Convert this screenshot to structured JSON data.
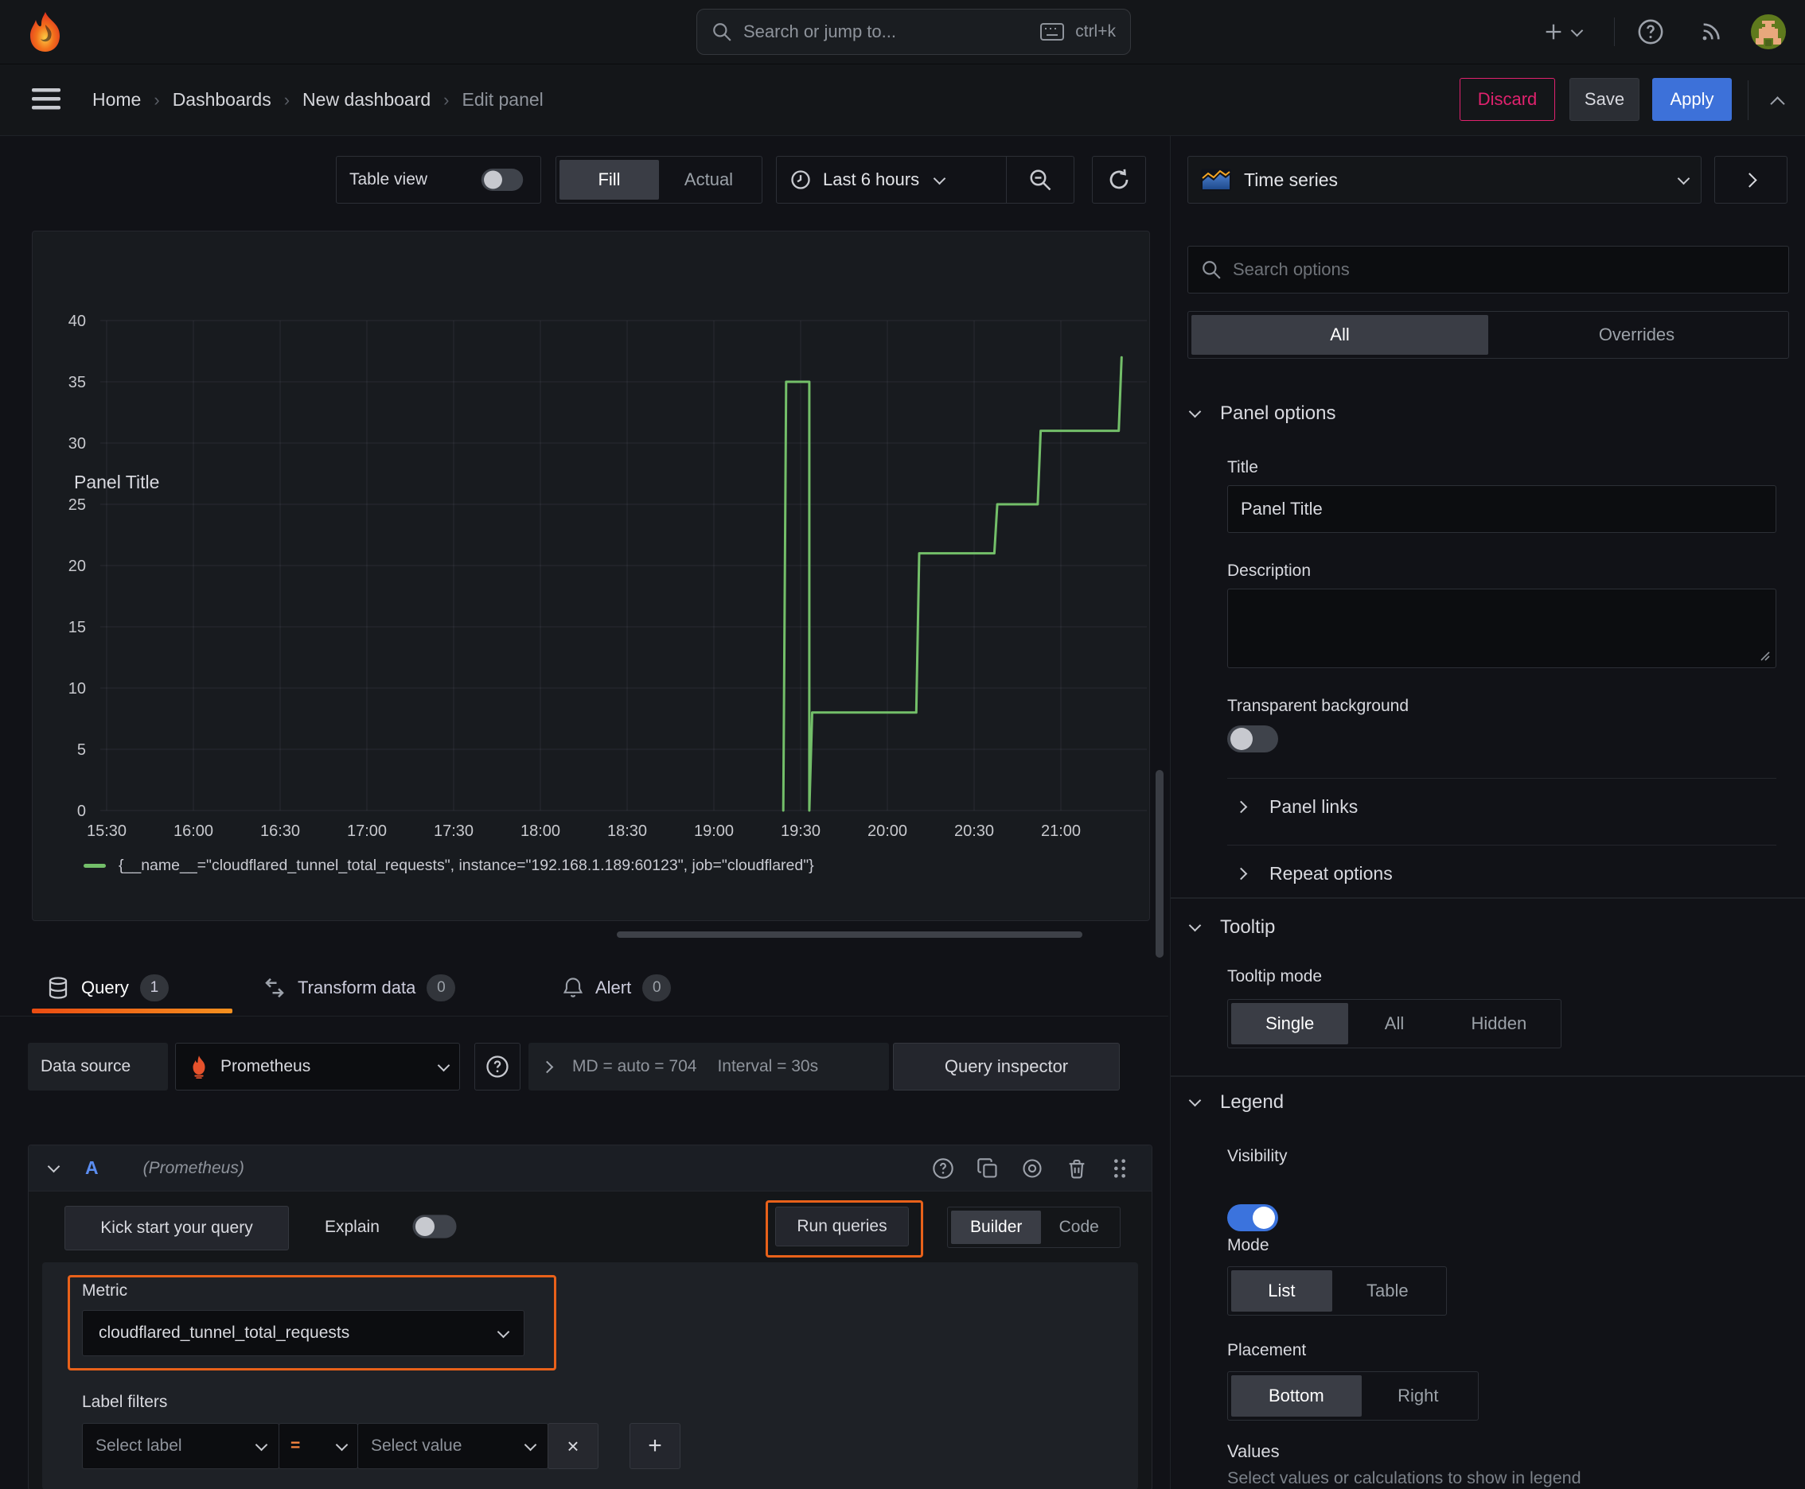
{
  "colors": {
    "accent_orange": "#e8611a",
    "series_green": "#73bf69",
    "apply_blue": "#3d71d9",
    "discard_pink": "#e0226e",
    "toggle_blue": "#3b73dd"
  },
  "topbar": {
    "search_placeholder": "Search or jump to...",
    "search_shortcut": "ctrl+k"
  },
  "breadcrumb": {
    "items": [
      "Home",
      "Dashboards",
      "New dashboard",
      "Edit panel"
    ]
  },
  "actions": {
    "discard": "Discard",
    "save": "Save",
    "apply": "Apply"
  },
  "toolbar": {
    "table_view": "Table view",
    "fill": "Fill",
    "actual": "Actual",
    "time_range": "Last 6 hours"
  },
  "panel": {
    "title": "Panel Title"
  },
  "chart_data": {
    "type": "line",
    "step": true,
    "title": "Panel Title",
    "xlabel": "",
    "ylabel": "",
    "ylim": [
      0,
      40
    ],
    "y_ticks": [
      0,
      5,
      10,
      15,
      20,
      25,
      30,
      35,
      40
    ],
    "x_ticks": [
      "15:30",
      "16:00",
      "16:30",
      "17:00",
      "17:30",
      "18:00",
      "18:30",
      "19:00",
      "19:30",
      "20:00",
      "20:30",
      "21:00"
    ],
    "grid": true,
    "legend_position": "bottom",
    "series": [
      {
        "name": "{__name__=\"cloudflared_tunnel_total_requests\", instance=\"192.168.1.189:60123\", job=\"cloudflared\"}",
        "color": "#73bf69",
        "points_time_value": [
          [
            "19:24",
            0
          ],
          [
            "19:25",
            35
          ],
          [
            "19:33",
            35
          ],
          [
            "19:33",
            0
          ],
          [
            "19:34",
            8
          ],
          [
            "20:10",
            8
          ],
          [
            "20:11",
            21
          ],
          [
            "20:37",
            21
          ],
          [
            "20:38",
            25
          ],
          [
            "20:52",
            25
          ],
          [
            "20:53",
            31
          ],
          [
            "21:20",
            31
          ],
          [
            "21:21",
            37
          ]
        ]
      }
    ]
  },
  "tabs": {
    "items": [
      {
        "label": "Query",
        "count": "1"
      },
      {
        "label": "Transform data",
        "count": "0"
      },
      {
        "label": "Alert",
        "count": "0"
      }
    ]
  },
  "query_bar": {
    "data_source_label": "Data source",
    "data_source_value": "Prometheus",
    "options_md": "MD = auto = 704",
    "options_interval": "Interval = 30s",
    "inspector": "Query inspector"
  },
  "query_row": {
    "ref_id": "A",
    "datasource_hint": "(Prometheus)"
  },
  "editor": {
    "kick_start": "Kick start your query",
    "explain": "Explain",
    "run_queries": "Run queries",
    "builder": "Builder",
    "code": "Code",
    "metric_label": "Metric",
    "metric_value": "cloudflared_tunnel_total_requests",
    "label_filters": "Label filters",
    "select_label": "Select label",
    "operator": "=",
    "select_value": "Select value"
  },
  "sidebar": {
    "viz_type": "Time series",
    "search_placeholder": "Search options",
    "all_tab": "All",
    "overrides_tab": "Overrides",
    "panel_options": {
      "header": "Panel options",
      "title_label": "Title",
      "title_value": "Panel Title",
      "description_label": "Description",
      "transparent_label": "Transparent background"
    },
    "links": {
      "panel_links": "Panel links",
      "repeat_options": "Repeat options"
    },
    "tooltip": {
      "header": "Tooltip",
      "mode_label": "Tooltip mode",
      "single": "Single",
      "all": "All",
      "hidden": "Hidden"
    },
    "legend": {
      "header": "Legend",
      "visibility_label": "Visibility",
      "mode_label": "Mode",
      "list": "List",
      "table": "Table",
      "placement_label": "Placement",
      "bottom": "Bottom",
      "right": "Right",
      "values_label": "Values",
      "values_hint": "Select values or calculations to show in legend"
    }
  }
}
